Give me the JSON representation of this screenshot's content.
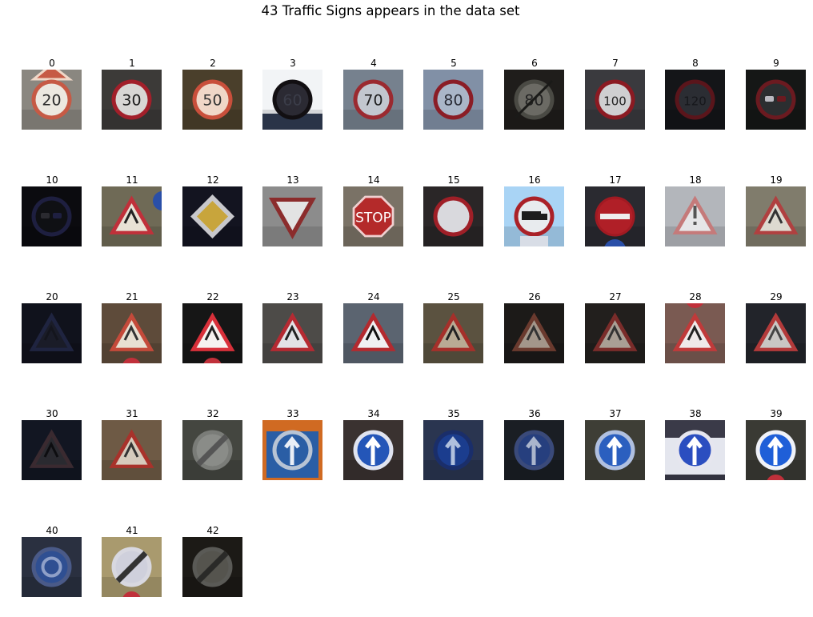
{
  "figure": {
    "title": "43 Traffic Signs appears in the data set"
  },
  "signs": [
    {
      "label": "0",
      "bg": "#8a8780",
      "kind": "circle-num",
      "text": "20",
      "ring": "#c65a45",
      "fill": "#ece8e0",
      "ink": "#2a2a2a",
      "extra": "tri-top"
    },
    {
      "label": "1",
      "bg": "#3c3a38",
      "kind": "circle-num",
      "text": "30",
      "ring": "#a21f2a",
      "fill": "#d8d6d4",
      "ink": "#1b1b1b"
    },
    {
      "label": "2",
      "bg": "#4a3f2b",
      "kind": "circle-num",
      "text": "50",
      "ring": "#c94f3b",
      "fill": "#f0d7c8",
      "ink": "#333"
    },
    {
      "label": "3",
      "bg": "#f2f4f6",
      "kind": "circle-num",
      "text": "60",
      "ring": "#120f12",
      "fill": "#2b2a33",
      "ink": "#3b3d49",
      "extra": "dark-bottom"
    },
    {
      "label": "4",
      "bg": "#76818e",
      "kind": "circle-num",
      "text": "70",
      "ring": "#9b2a30",
      "fill": "#c2c7cf",
      "ink": "#1e1e1e"
    },
    {
      "label": "5",
      "bg": "#8190a6",
      "kind": "circle-num",
      "text": "80",
      "ring": "#8b1d26",
      "fill": "#aab6c8",
      "ink": "#2a2c36"
    },
    {
      "label": "6",
      "bg": "#1f1d1b",
      "kind": "circle-num",
      "text": "80",
      "ring": "#4a4a44",
      "fill": "#6b6a64",
      "ink": "#222",
      "extra": "slash"
    },
    {
      "label": "7",
      "bg": "#3a3a3e",
      "kind": "circle-num",
      "text": "100",
      "ring": "#8b1a22",
      "fill": "#cfcfd1",
      "ink": "#222"
    },
    {
      "label": "8",
      "bg": "#141518",
      "kind": "circle-num",
      "text": "120",
      "ring": "#5a151b",
      "fill": "#2b2d33",
      "ink": "#16171b"
    },
    {
      "label": "9",
      "bg": "#151716",
      "kind": "circle-cars",
      "ring": "#6b1a20",
      "fill": "#2b2e30",
      "ink": "#b9b9c0"
    },
    {
      "label": "10",
      "bg": "#0b0b0f",
      "kind": "circle-cars",
      "ring": "#1e1f40",
      "fill": "#0f1014",
      "ink": "#2a2a30"
    },
    {
      "label": "11",
      "bg": "#6f6a56",
      "kind": "tri",
      "ring": "#c0303a",
      "fill": "#e8e2d5",
      "ink": "#222",
      "extra": "blue-right"
    },
    {
      "label": "12",
      "bg": "#131420",
      "kind": "diamond",
      "ring": "#c8c8cc",
      "fill": "#c8a53c",
      "ink": "#222"
    },
    {
      "label": "13",
      "bg": "#8c8c8c",
      "kind": "yield",
      "ring": "#8b2c2c",
      "fill": "#e3e3e3",
      "ink": "#222"
    },
    {
      "label": "14",
      "bg": "#7a7266",
      "kind": "stop",
      "ring": "#f0d0d0",
      "fill": "#b42a2a",
      "ink": "#ffffff",
      "text": "STOP"
    },
    {
      "label": "15",
      "bg": "#2a2627",
      "kind": "ring-only",
      "ring": "#9f1f27",
      "fill": "#d9d9dd",
      "ink": "#222"
    },
    {
      "label": "16",
      "bg": "#a9d4f5",
      "kind": "circle-truck",
      "ring": "#aa2128",
      "fill": "#e8ebee",
      "ink": "#1d1d1d"
    },
    {
      "label": "17",
      "bg": "#2a2a30",
      "kind": "noentry",
      "ring": "#a11a22",
      "fill": "#b01f27",
      "ink": "#eeeeee",
      "extra": "blue-bottom"
    },
    {
      "label": "18",
      "bg": "#b3b6bb",
      "kind": "tri-excl",
      "ring": "#c57a7a",
      "fill": "#e6e6e8",
      "ink": "#555"
    },
    {
      "label": "19",
      "bg": "#807c6c",
      "kind": "tri",
      "ring": "#b04040",
      "fill": "#dddad0",
      "ink": "#333"
    },
    {
      "label": "20",
      "bg": "#10121c",
      "kind": "tri",
      "ring": "#1f2440",
      "fill": "#1a1c28",
      "ink": "#14151d"
    },
    {
      "label": "21",
      "bg": "#5e4b3a",
      "kind": "tri",
      "ring": "#c44a3a",
      "fill": "#e8e0d2",
      "ink": "#333",
      "extra": "red-bottom"
    },
    {
      "label": "22",
      "bg": "#161616",
      "kind": "tri",
      "ring": "#d8303a",
      "fill": "#f6f2f0",
      "ink": "#222",
      "extra": "red-bottom"
    },
    {
      "label": "23",
      "bg": "#4d4b48",
      "kind": "tri",
      "ring": "#b52a32",
      "fill": "#e3e2e6",
      "ink": "#222"
    },
    {
      "label": "24",
      "bg": "#5b6470",
      "kind": "tri",
      "ring": "#b32a2f",
      "fill": "#f0f0f2",
      "ink": "#111"
    },
    {
      "label": "25",
      "bg": "#5b5240",
      "kind": "tri",
      "ring": "#a5302a",
      "fill": "#b9ab94",
      "ink": "#222"
    },
    {
      "label": "26",
      "bg": "#1c1a18",
      "kind": "tri",
      "ring": "#6a3a2e",
      "fill": "#a3968a",
      "ink": "#333"
    },
    {
      "label": "27",
      "bg": "#221f1d",
      "kind": "tri",
      "ring": "#7a2c2a",
      "fill": "#a99f95",
      "ink": "#333"
    },
    {
      "label": "28",
      "bg": "#7a5a52",
      "kind": "tri",
      "ring": "#c03a3a",
      "fill": "#efeaea",
      "ink": "#222",
      "extra": "red-top"
    },
    {
      "label": "29",
      "bg": "#22242a",
      "kind": "tri",
      "ring": "#b33a3a",
      "fill": "#c9c7c4",
      "ink": "#444"
    },
    {
      "label": "30",
      "bg": "#121622",
      "kind": "tri",
      "ring": "#3a2a30",
      "fill": "#2a2a30",
      "ink": "#0d0d10"
    },
    {
      "label": "31",
      "bg": "#6e5a45",
      "kind": "tri",
      "ring": "#a8322b",
      "fill": "#d6cbbd",
      "ink": "#333"
    },
    {
      "label": "32",
      "bg": "#444640",
      "kind": "circle-end",
      "ring": "#7a7c78",
      "fill": "#8a8c88",
      "ink": "#555"
    },
    {
      "label": "33",
      "bg": "#2b4a6e",
      "kind": "circle-arrow",
      "ring": "#b8c4d4",
      "fill": "#2a5ea5",
      "ink": "#e9eef6",
      "extra": "orange-frame"
    },
    {
      "label": "34",
      "bg": "#3a3230",
      "kind": "circle-arrow",
      "ring": "#e0e4f0",
      "fill": "#2456b8",
      "ink": "#ffffff"
    },
    {
      "label": "35",
      "bg": "#2a3550",
      "kind": "circle-arrow",
      "ring": "#1a2e6a",
      "fill": "#1b3d8e",
      "ink": "#b0c0dd"
    },
    {
      "label": "36",
      "bg": "#1a1e24",
      "kind": "circle-arrow",
      "ring": "#3a4a7a",
      "fill": "#263f7e",
      "ink": "#aab5cc"
    },
    {
      "label": "37",
      "bg": "#3e3e36",
      "kind": "circle-arrow",
      "ring": "#b0c0e0",
      "fill": "#2b5fbf",
      "ink": "#ffffff"
    },
    {
      "label": "38",
      "bg": "#3a3a48",
      "kind": "circle-arrow",
      "ring": "#e6e6ef",
      "fill": "#2b4ec0",
      "ink": "#ffffff",
      "extra": "white-band"
    },
    {
      "label": "39",
      "bg": "#3a3a34",
      "kind": "circle-arrow",
      "ring": "#f0f2f8",
      "fill": "#1f5fd8",
      "ink": "#ffffff",
      "extra": "red-bottom"
    },
    {
      "label": "40",
      "bg": "#2a3040",
      "kind": "circle-round",
      "ring": "#4a5a88",
      "fill": "#2f4f92",
      "ink": "#8fa0c8"
    },
    {
      "label": "41",
      "bg": "#a99a6e",
      "kind": "circle-end",
      "ring": "#d8d8e0",
      "fill": "#cfd0dc",
      "ink": "#333",
      "extra": "red-bottom"
    },
    {
      "label": "42",
      "bg": "#1c1a16",
      "kind": "circle-end",
      "ring": "#5a5a56",
      "fill": "#55544e",
      "ink": "#2a2a28"
    }
  ]
}
